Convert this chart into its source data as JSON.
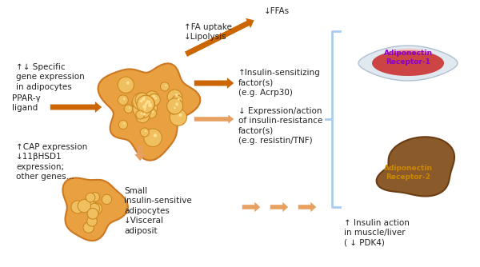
{
  "bg_color": "#f5f0e8",
  "arrow_color": "#cc6600",
  "arrow_light": "#e8a060",
  "text_color": "#222222",
  "muscle_colors": [
    "#d45050",
    "#e87070",
    "#f0a0a0"
  ],
  "liver_color": "#8B5A2B",
  "adiponectin1_color": "#8800cc",
  "adiponectin2_color": "#cc8800",
  "bracket_color": "#aaccee",
  "texts": {
    "specific_gene": "↑↓ Specific\ngene expression\nin adipocytes",
    "ppar": "PPAR-γ\nligand",
    "fa_uptake": "↑FA uptake\n↓Lipolysis",
    "ffas": "↓FFAs",
    "insulin_sens": "↑Insulin-sensitizing\nfactor(s)\n(e.g. Acrp30)",
    "expression_action": "↓ Expression/action\nof insulin-resistance\nfactor(s)\n(e.g. resistin/TNF)",
    "cap_expr": "↑CAP expression\n↓11βHSD1\nexpression;\nother genes...",
    "small_adipo": "Small\ninsulin-sensitive\nadipocytes\n↓Visceral\nadiposit",
    "insulin_action": "↑ Insulin action\nin muscle/liver\n( ↓ PDK4)",
    "adiponectin1": "Adiponectin\nReceptor-1",
    "adiponectin2": "Adiponectin\nReceptor-2"
  }
}
